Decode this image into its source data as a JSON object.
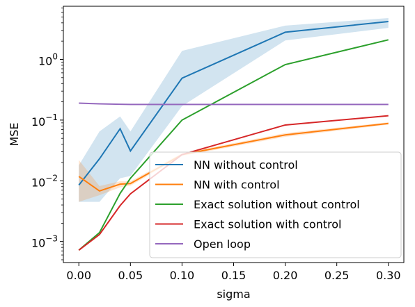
{
  "chart_data": {
    "type": "line",
    "xlabel": "sigma",
    "ylabel": "MSE",
    "xlim": [
      -0.015,
      0.315
    ],
    "ylim": [
      0.00045,
      7.5
    ],
    "yscale": "log",
    "grid": false,
    "legend_position": "lower-right",
    "x_ticks": [
      0.0,
      0.05,
      0.1,
      0.15,
      0.2,
      0.25,
      0.3
    ],
    "x_tick_labels": [
      "0.00",
      "0.05",
      "0.10",
      "0.15",
      "0.20",
      "0.25",
      "0.30"
    ],
    "y_ticks": [
      0.001,
      0.01,
      0.1,
      1
    ],
    "y_tick_labels": [
      "10",
      "10",
      "10",
      "10"
    ],
    "y_tick_exponents": [
      "−3",
      "−2",
      "−1",
      "0"
    ],
    "series": [
      {
        "name": "NN without control",
        "color": "#1f77b4",
        "x": [
          0.0,
          0.02,
          0.04,
          0.05,
          0.1,
          0.2,
          0.3
        ],
        "y": [
          0.0085,
          0.023,
          0.072,
          0.031,
          0.49,
          2.8,
          4.2
        ],
        "band_low": [
          0.0045,
          0.0045,
          0.011,
          0.012,
          0.17,
          2.05,
          3.3
        ],
        "band_high": [
          0.018,
          0.065,
          0.115,
          0.065,
          1.38,
          3.6,
          4.8
        ]
      },
      {
        "name": "NN with control",
        "color": "#ff7f0e",
        "x": [
          0.0,
          0.02,
          0.04,
          0.05,
          0.1,
          0.2,
          0.3
        ],
        "y": [
          0.0118,
          0.0068,
          0.0088,
          0.009,
          0.027,
          0.057,
          0.088
        ],
        "band_low": [
          0.0045,
          0.0058,
          0.0078,
          0.0083,
          0.0255,
          0.053,
          0.084
        ],
        "band_high": [
          0.022,
          0.0082,
          0.0098,
          0.0098,
          0.0285,
          0.061,
          0.092
        ]
      },
      {
        "name": "Exact solution without control",
        "color": "#2ca02c",
        "x": [
          0.0,
          0.02,
          0.04,
          0.05,
          0.1,
          0.2,
          0.3
        ],
        "y": [
          0.00072,
          0.0014,
          0.0062,
          0.011,
          0.1,
          0.82,
          2.1
        ]
      },
      {
        "name": "Exact solution with control",
        "color": "#d62728",
        "x": [
          0.0,
          0.02,
          0.04,
          0.05,
          0.1,
          0.2,
          0.3
        ],
        "y": [
          0.00072,
          0.0013,
          0.0039,
          0.0061,
          0.027,
          0.083,
          0.118
        ]
      },
      {
        "name": "Open loop",
        "color": "#9467bd",
        "x": [
          0.0,
          0.02,
          0.04,
          0.05,
          0.1,
          0.2,
          0.3
        ],
        "y": [
          0.19,
          0.185,
          0.182,
          0.181,
          0.181,
          0.181,
          0.181
        ]
      }
    ]
  }
}
